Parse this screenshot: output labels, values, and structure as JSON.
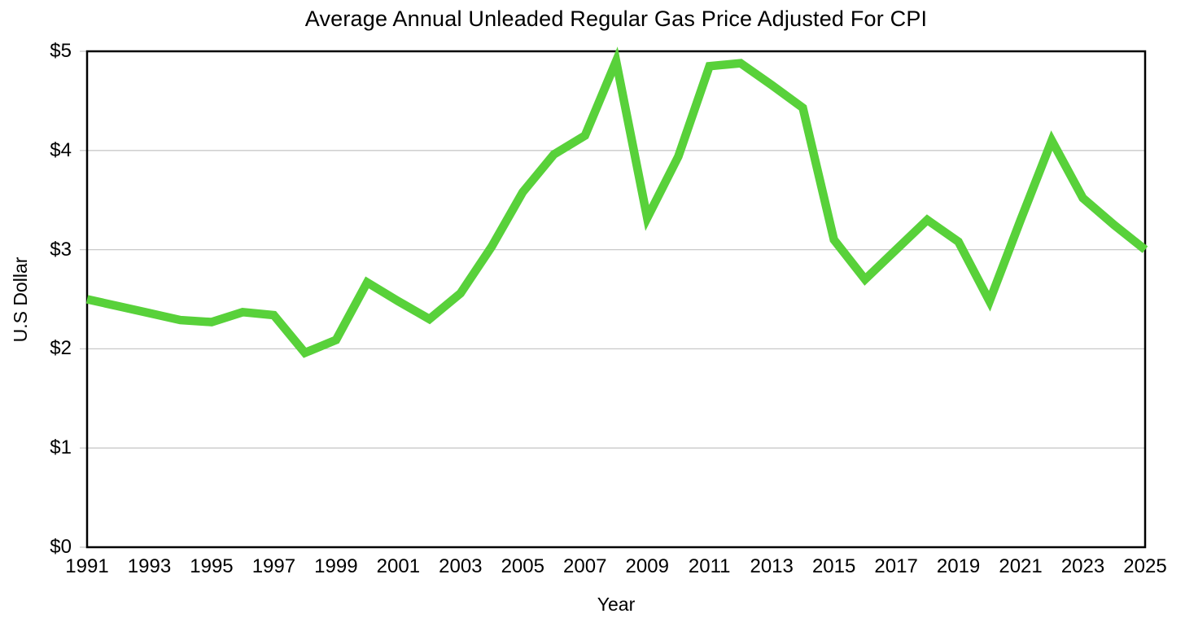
{
  "chart_data": {
    "type": "line",
    "title": "Average Annual Unleaded Regular Gas Price Adjusted For CPI",
    "xlabel": "Year",
    "ylabel": "U.S Dollar",
    "x": [
      1991,
      1992,
      1993,
      1994,
      1995,
      1996,
      1997,
      1998,
      1999,
      2000,
      2001,
      2002,
      2003,
      2004,
      2005,
      2006,
      2007,
      2008,
      2009,
      2010,
      2011,
      2012,
      2013,
      2014,
      2015,
      2016,
      2017,
      2018,
      2019,
      2020,
      2021,
      2022,
      2023,
      2024,
      2025
    ],
    "series": [
      {
        "color": "#58d13a",
        "values": [
          2.5,
          2.43,
          2.36,
          2.29,
          2.27,
          2.37,
          2.34,
          1.96,
          2.09,
          2.67,
          2.48,
          2.3,
          2.56,
          3.03,
          3.58,
          3.96,
          4.15,
          4.9,
          3.32,
          3.94,
          4.85,
          4.88,
          4.66,
          4.43,
          3.1,
          2.7,
          3.0,
          3.3,
          3.08,
          2.48,
          3.3,
          4.1,
          3.52,
          3.25,
          3.0
        ]
      }
    ],
    "ylim": [
      0,
      5
    ],
    "y_ticks": [
      {
        "value": 0,
        "label": "$0"
      },
      {
        "value": 1,
        "label": "$1"
      },
      {
        "value": 2,
        "label": "$2"
      },
      {
        "value": 3,
        "label": "$3"
      },
      {
        "value": 4,
        "label": "$4"
      },
      {
        "value": 5,
        "label": "$5"
      }
    ],
    "x_tick_labels": [
      "1991",
      "1993",
      "1995",
      "1997",
      "1999",
      "2001",
      "2003",
      "2005",
      "2007",
      "2009",
      "2011",
      "2013",
      "2015",
      "2017",
      "2019",
      "2021",
      "2023",
      "2025"
    ],
    "grid": "horizontal",
    "legend": "none",
    "colors": {
      "line": "#58d13a",
      "gridline": "#c9c9c9",
      "axis": "#000000",
      "text": "#000000",
      "background": "#ffffff"
    }
  }
}
